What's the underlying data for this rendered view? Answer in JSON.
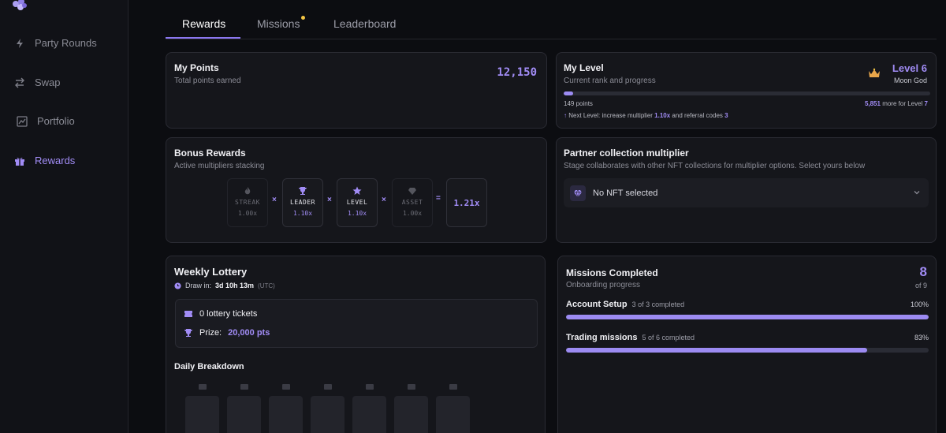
{
  "sidebar": {
    "items": [
      {
        "label": "Party Rounds",
        "icon": "lightning-icon"
      },
      {
        "label": "Swap",
        "icon": "swap-arrows-icon"
      },
      {
        "label": "Portfolio",
        "icon": "chart-icon"
      },
      {
        "label": "Rewards",
        "icon": "gift-icon"
      }
    ]
  },
  "tabs": [
    {
      "label": "Rewards",
      "active": true
    },
    {
      "label": "Missions",
      "active": false,
      "badge": "dot"
    },
    {
      "label": "Leaderboard",
      "active": false
    }
  ],
  "points": {
    "title": "My Points",
    "subtitle": "Total points earned",
    "value": "12,150"
  },
  "level": {
    "title": "My Level",
    "subtitle": "Current rank and progress",
    "level_label": "Level 6",
    "rank": "Moon God",
    "progress": 0.025,
    "points_label": "149 points",
    "more_value": "5,851",
    "more_text": " more for Level ",
    "next_level": "7",
    "next_prefix": "Next Level: increase multiplier ",
    "next_multiplier": "1.10x",
    "next_mid": " and referral codes ",
    "next_codes": "3"
  },
  "bonus": {
    "title": "Bonus Rewards",
    "subtitle": "Active multipliers stacking",
    "tiles": [
      {
        "label": "STREAK",
        "value": "1.00x",
        "icon": "flame-icon",
        "active": false
      },
      {
        "label": "LEADER",
        "value": "1.10x",
        "icon": "trophy-icon",
        "active": true
      },
      {
        "label": "LEVEL",
        "value": "1.10x",
        "icon": "star-icon",
        "active": true
      },
      {
        "label": "ASSET",
        "value": "1.00x",
        "icon": "gem-icon",
        "active": false
      }
    ],
    "times": "×",
    "equals": "=",
    "total": "1.21x"
  },
  "partner": {
    "title": "Partner collection multiplier",
    "subtitle": "Stage collaborates with other NFT collections for multiplier options. Select yours below",
    "select_value": "No NFT selected"
  },
  "lottery": {
    "title": "Weekly Lottery",
    "draw_prefix": "Draw in:",
    "draw_time": "3d 10h 13m",
    "draw_tz": "(UTC)",
    "tickets": "0 lottery tickets",
    "prize_prefix": "Prize:",
    "prize_value": "20,000 pts",
    "breakdown_title": "Daily Breakdown"
  },
  "missions": {
    "title": "Missions Completed",
    "subtitle": "Onboarding progress",
    "count": "8",
    "of_total": "of 9",
    "rows": [
      {
        "name": "Account Setup",
        "detail": "3 of 3 completed",
        "percent": "100%",
        "progress": 1.0
      },
      {
        "name": "Trading missions",
        "detail": "5 of 6 completed",
        "percent": "83%",
        "progress": 0.83
      }
    ]
  },
  "colors": {
    "accent": "#a18cf5",
    "background": "#0c0d11",
    "card": "#15161b",
    "badge": "#f3c544"
  }
}
